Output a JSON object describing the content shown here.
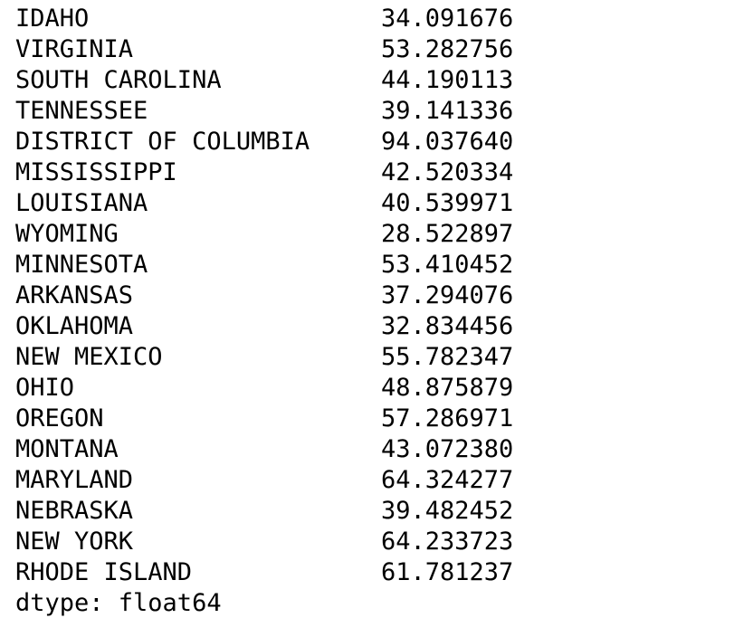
{
  "series": {
    "rows": [
      {
        "label": "IDAHO",
        "value": "34.091676"
      },
      {
        "label": "VIRGINIA",
        "value": "53.282756"
      },
      {
        "label": "SOUTH CAROLINA",
        "value": "44.190113"
      },
      {
        "label": "TENNESSEE",
        "value": "39.141336"
      },
      {
        "label": "DISTRICT OF COLUMBIA",
        "value": "94.037640"
      },
      {
        "label": "MISSISSIPPI",
        "value": "42.520334"
      },
      {
        "label": "LOUISIANA",
        "value": "40.539971"
      },
      {
        "label": "WYOMING",
        "value": "28.522897"
      },
      {
        "label": "MINNESOTA",
        "value": "53.410452"
      },
      {
        "label": "ARKANSAS",
        "value": "37.294076"
      },
      {
        "label": "OKLAHOMA",
        "value": "32.834456"
      },
      {
        "label": "NEW MEXICO",
        "value": "55.782347"
      },
      {
        "label": "OHIO",
        "value": "48.875879"
      },
      {
        "label": "OREGON",
        "value": "57.286971"
      },
      {
        "label": "MONTANA",
        "value": "43.072380"
      },
      {
        "label": "MARYLAND",
        "value": "64.324277"
      },
      {
        "label": "NEBRASKA",
        "value": "39.482452"
      },
      {
        "label": "NEW YORK",
        "value": "64.233723"
      },
      {
        "label": "RHODE ISLAND",
        "value": "61.781237"
      }
    ],
    "dtype": "dtype: float64"
  }
}
